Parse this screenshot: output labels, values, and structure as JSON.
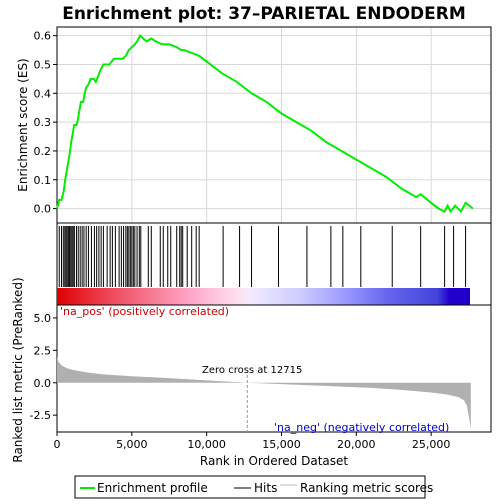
{
  "chart_data": {
    "type": "line",
    "title": "Enrichment plot: 37–PARIETAL ENDODERM",
    "xlabel": "Rank in Ordered Dataset",
    "xlim": [
      0,
      29000
    ],
    "x_ticks": [
      0,
      5000,
      10000,
      15000,
      20000,
      25000
    ],
    "top_panel": {
      "ylabel": "Enrichment score (ES)",
      "ylim": [
        -0.05,
        0.63
      ],
      "y_ticks": [
        0.0,
        0.1,
        0.2,
        0.3,
        0.4,
        0.5,
        0.6
      ],
      "y_tick_labels": [
        "0.0",
        "0.1",
        "0.2",
        "0.3",
        "0.4",
        "0.5",
        "0.6"
      ],
      "grid": true,
      "series": [
        {
          "name": "Enrichment profile",
          "color": "#00ee00",
          "points": [
            [
              0,
              0.0
            ],
            [
              150,
              0.03
            ],
            [
              300,
              0.03
            ],
            [
              450,
              0.06
            ],
            [
              550,
              0.1
            ],
            [
              650,
              0.13
            ],
            [
              750,
              0.16
            ],
            [
              850,
              0.19
            ],
            [
              950,
              0.23
            ],
            [
              1050,
              0.26
            ],
            [
              1150,
              0.29
            ],
            [
              1300,
              0.29
            ],
            [
              1400,
              0.31
            ],
            [
              1500,
              0.34
            ],
            [
              1600,
              0.37
            ],
            [
              1750,
              0.37
            ],
            [
              1850,
              0.4
            ],
            [
              1950,
              0.42
            ],
            [
              2100,
              0.43
            ],
            [
              2250,
              0.45
            ],
            [
              2450,
              0.45
            ],
            [
              2600,
              0.44
            ],
            [
              2750,
              0.46
            ],
            [
              2900,
              0.48
            ],
            [
              3100,
              0.5
            ],
            [
              3300,
              0.5
            ],
            [
              3500,
              0.5
            ],
            [
              3650,
              0.51
            ],
            [
              3800,
              0.52
            ],
            [
              4000,
              0.52
            ],
            [
              4200,
              0.52
            ],
            [
              4400,
              0.52
            ],
            [
              4600,
              0.53
            ],
            [
              4800,
              0.55
            ],
            [
              5000,
              0.56
            ],
            [
              5200,
              0.57
            ],
            [
              5350,
              0.58
            ],
            [
              5550,
              0.6
            ],
            [
              5750,
              0.59
            ],
            [
              6000,
              0.58
            ],
            [
              6300,
              0.59
            ],
            [
              6600,
              0.58
            ],
            [
              7000,
              0.57
            ],
            [
              7500,
              0.57
            ],
            [
              8000,
              0.56
            ],
            [
              8300,
              0.55
            ],
            [
              8500,
              0.55
            ],
            [
              9000,
              0.54
            ],
            [
              9500,
              0.53
            ],
            [
              10000,
              0.51
            ],
            [
              11000,
              0.47
            ],
            [
              12000,
              0.44
            ],
            [
              13000,
              0.4
            ],
            [
              14000,
              0.37
            ],
            [
              15000,
              0.33
            ],
            [
              16000,
              0.3
            ],
            [
              17000,
              0.27
            ],
            [
              18000,
              0.23
            ],
            [
              19000,
              0.2
            ],
            [
              20000,
              0.17
            ],
            [
              21000,
              0.14
            ],
            [
              22000,
              0.11
            ],
            [
              22500,
              0.09
            ],
            [
              23000,
              0.07
            ],
            [
              24000,
              0.04
            ],
            [
              24300,
              0.05
            ],
            [
              25000,
              0.02
            ],
            [
              25500,
              0.0
            ],
            [
              25900,
              -0.01
            ],
            [
              26100,
              0.01
            ],
            [
              26300,
              -0.01
            ],
            [
              26600,
              0.01
            ],
            [
              27000,
              -0.01
            ],
            [
              27300,
              0.02
            ],
            [
              27800,
              0.0
            ]
          ]
        }
      ]
    },
    "hits": [
      150,
      300,
      420,
      520,
      600,
      680,
      760,
      840,
      920,
      1000,
      1080,
      1160,
      1300,
      1420,
      1550,
      1680,
      1800,
      1950,
      2100,
      2300,
      2500,
      2650,
      2800,
      2950,
      3100,
      3350,
      3550,
      3700,
      3900,
      4150,
      4300,
      4450,
      4600,
      4700,
      4800,
      4900,
      5000,
      5100,
      5200,
      5350,
      5500,
      5600,
      6100,
      6300,
      6900,
      7100,
      7400,
      7600,
      8000,
      8200,
      8300,
      8400,
      8700,
      9000,
      9300,
      9500,
      11100,
      12200,
      13000,
      14800,
      16700,
      18300,
      19100,
      20300,
      22400,
      24300,
      25900,
      26500,
      27300
    ],
    "bottom_panel": {
      "ylabel": "Ranked list metric (PreRanked)",
      "ylim": [
        -3.8,
        6.0
      ],
      "y_ticks": [
        5.0,
        2.5,
        0.0,
        -2.5
      ],
      "y_tick_labels": [
        "5.0",
        "2.5",
        "0.0",
        "-2.5"
      ],
      "zero_cross_rank": 12715,
      "metric_curve": [
        [
          0,
          2.0
        ],
        [
          100,
          1.6
        ],
        [
          300,
          1.35
        ],
        [
          600,
          1.15
        ],
        [
          1000,
          1.0
        ],
        [
          2000,
          0.8
        ],
        [
          3000,
          0.65
        ],
        [
          5000,
          0.5
        ],
        [
          7000,
          0.38
        ],
        [
          9000,
          0.25
        ],
        [
          11000,
          0.12
        ],
        [
          12715,
          0.0
        ],
        [
          15000,
          -0.1
        ],
        [
          18000,
          -0.25
        ],
        [
          21000,
          -0.4
        ],
        [
          23000,
          -0.55
        ],
        [
          25000,
          -0.75
        ],
        [
          26000,
          -0.9
        ],
        [
          26800,
          -1.1
        ],
        [
          27200,
          -1.35
        ],
        [
          27400,
          -1.8
        ],
        [
          27550,
          -2.8
        ],
        [
          27650,
          -3.6
        ]
      ],
      "annotations": [
        "'na_pos' (positively correlated)",
        "Zero cross at 12715",
        "'na_neg' (negatively correlated)"
      ]
    },
    "legend": {
      "placement": "bottom",
      "entries": [
        "Enrichment profile",
        "Hits",
        "Ranking metric scores"
      ]
    },
    "colors": {
      "profile": "#00ee00",
      "hit": "#000000",
      "metric_fill": "#b0b0b0",
      "pos_label": "#cc0000",
      "neg_label": "#0000cc",
      "zero_line": "#999999"
    }
  }
}
